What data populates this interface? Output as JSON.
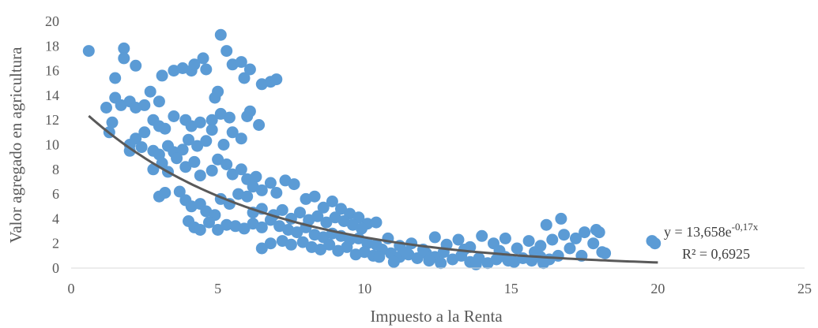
{
  "chart_data": {
    "type": "scatter",
    "xlabel": "Impuesto a la Renta",
    "ylabel": "Valor agregado en agricultura",
    "xlim": [
      0,
      25
    ],
    "ylim": [
      0,
      20
    ],
    "xticks": [
      "0",
      "5",
      "10",
      "15",
      "20",
      "25"
    ],
    "yticks": [
      "0",
      "2",
      "4",
      "6",
      "8",
      "10",
      "12",
      "14",
      "16",
      "18",
      "20"
    ],
    "grid": false,
    "colors": {
      "points": "#5b9bd5",
      "trendline": "#595959"
    },
    "trendline": {
      "type": "exponential",
      "a": 13.658,
      "b": -0.17,
      "x_range": [
        0.6,
        20
      ],
      "equation_prefix": "y = 13,658e",
      "equation_exponent": "-0,17x",
      "r2_label": "R² = 0,6925"
    },
    "points": [
      [
        0.6,
        17.6
      ],
      [
        1.5,
        15.4
      ],
      [
        1.8,
        17.8
      ],
      [
        1.8,
        17.0
      ],
      [
        2.2,
        16.4
      ],
      [
        1.2,
        13.0
      ],
      [
        1.5,
        13.8
      ],
      [
        1.7,
        13.2
      ],
      [
        2.0,
        13.5
      ],
      [
        2.2,
        13.0
      ],
      [
        2.5,
        13.2
      ],
      [
        2.7,
        14.3
      ],
      [
        3.0,
        13.5
      ],
      [
        3.1,
        15.6
      ],
      [
        3.5,
        16.0
      ],
      [
        3.8,
        16.2
      ],
      [
        4.1,
        16.0
      ],
      [
        4.2,
        16.5
      ],
      [
        4.5,
        17.0
      ],
      [
        4.6,
        16.1
      ],
      [
        4.9,
        13.8
      ],
      [
        5.0,
        14.3
      ],
      [
        5.1,
        18.9
      ],
      [
        5.3,
        17.6
      ],
      [
        5.5,
        16.5
      ],
      [
        5.8,
        16.7
      ],
      [
        5.9,
        15.4
      ],
      [
        6.1,
        16.1
      ],
      [
        6.5,
        14.9
      ],
      [
        6.8,
        15.1
      ],
      [
        7.0,
        15.3
      ],
      [
        4.8,
        12.0
      ],
      [
        5.1,
        12.5
      ],
      [
        5.4,
        12.2
      ],
      [
        6.0,
        12.3
      ],
      [
        6.1,
        12.7
      ],
      [
        6.4,
        11.6
      ],
      [
        1.3,
        11.0
      ],
      [
        1.4,
        11.8
      ],
      [
        2.0,
        10.0
      ],
      [
        2.2,
        10.5
      ],
      [
        2.5,
        11.0
      ],
      [
        2.8,
        12.0
      ],
      [
        3.0,
        11.5
      ],
      [
        3.2,
        11.3
      ],
      [
        3.5,
        12.3
      ],
      [
        3.9,
        12.0
      ],
      [
        4.1,
        11.5
      ],
      [
        4.4,
        11.8
      ],
      [
        4.8,
        11.2
      ],
      [
        2.0,
        9.5
      ],
      [
        2.4,
        9.8
      ],
      [
        2.8,
        9.5
      ],
      [
        3.0,
        9.2
      ],
      [
        3.3,
        9.9
      ],
      [
        3.5,
        9.4
      ],
      [
        3.8,
        9.6
      ],
      [
        4.0,
        10.4
      ],
      [
        4.3,
        9.9
      ],
      [
        4.6,
        10.3
      ],
      [
        5.2,
        10.0
      ],
      [
        5.5,
        11.0
      ],
      [
        5.8,
        10.5
      ],
      [
        2.8,
        8.0
      ],
      [
        3.1,
        8.5
      ],
      [
        3.3,
        7.8
      ],
      [
        3.6,
        8.9
      ],
      [
        3.9,
        8.2
      ],
      [
        4.2,
        8.6
      ],
      [
        4.4,
        7.5
      ],
      [
        4.8,
        7.9
      ],
      [
        5.0,
        8.8
      ],
      [
        5.3,
        8.4
      ],
      [
        5.5,
        7.6
      ],
      [
        5.8,
        8.0
      ],
      [
        6.0,
        7.2
      ],
      [
        6.3,
        7.4
      ],
      [
        3.0,
        5.8
      ],
      [
        3.2,
        6.1
      ],
      [
        3.7,
        6.2
      ],
      [
        3.9,
        5.5
      ],
      [
        4.1,
        5.0
      ],
      [
        4.4,
        5.2
      ],
      [
        4.6,
        4.6
      ],
      [
        4.9,
        4.3
      ],
      [
        5.1,
        5.6
      ],
      [
        5.4,
        5.2
      ],
      [
        5.7,
        6.0
      ],
      [
        6.0,
        5.8
      ],
      [
        6.2,
        6.6
      ],
      [
        6.5,
        6.3
      ],
      [
        6.8,
        6.9
      ],
      [
        7.0,
        6.1
      ],
      [
        7.3,
        7.1
      ],
      [
        7.6,
        6.8
      ],
      [
        8.0,
        5.6
      ],
      [
        8.3,
        5.8
      ],
      [
        8.6,
        4.9
      ],
      [
        8.9,
        5.4
      ],
      [
        9.2,
        4.8
      ],
      [
        9.5,
        4.4
      ],
      [
        9.8,
        4.1
      ],
      [
        10.1,
        3.6
      ],
      [
        10.4,
        3.7
      ],
      [
        4.0,
        3.8
      ],
      [
        4.2,
        3.3
      ],
      [
        4.4,
        3.1
      ],
      [
        4.7,
        3.7
      ],
      [
        5.0,
        3.1
      ],
      [
        5.3,
        3.5
      ],
      [
        5.6,
        3.4
      ],
      [
        5.9,
        3.2
      ],
      [
        6.2,
        3.6
      ],
      [
        6.5,
        3.3
      ],
      [
        6.8,
        3.9
      ],
      [
        7.1,
        3.4
      ],
      [
        7.4,
        3.1
      ],
      [
        7.7,
        2.9
      ],
      [
        8.0,
        3.3
      ],
      [
        8.3,
        2.7
      ],
      [
        8.6,
        2.5
      ],
      [
        8.9,
        2.8
      ],
      [
        9.2,
        2.6
      ],
      [
        9.5,
        2.3
      ],
      [
        9.8,
        2.4
      ],
      [
        10.1,
        2.0
      ],
      [
        10.4,
        1.9
      ],
      [
        6.2,
        4.5
      ],
      [
        6.5,
        4.8
      ],
      [
        6.9,
        4.3
      ],
      [
        7.2,
        4.7
      ],
      [
        7.5,
        4.0
      ],
      [
        7.8,
        4.5
      ],
      [
        8.1,
        3.9
      ],
      [
        8.4,
        4.2
      ],
      [
        8.7,
        3.7
      ],
      [
        9.0,
        4.1
      ],
      [
        9.3,
        3.8
      ],
      [
        9.6,
        3.5
      ],
      [
        9.9,
        3.2
      ],
      [
        6.5,
        1.6
      ],
      [
        6.8,
        2.0
      ],
      [
        7.2,
        2.2
      ],
      [
        7.5,
        1.9
      ],
      [
        7.9,
        2.1
      ],
      [
        8.2,
        1.7
      ],
      [
        8.5,
        1.5
      ],
      [
        8.8,
        1.9
      ],
      [
        9.1,
        1.4
      ],
      [
        9.4,
        1.7
      ],
      [
        9.7,
        1.1
      ],
      [
        10.0,
        1.3
      ],
      [
        10.3,
        1.0
      ],
      [
        10.6,
        1.5
      ],
      [
        10.9,
        1.2
      ],
      [
        11.2,
        0.9
      ],
      [
        11.5,
        1.1
      ],
      [
        11.8,
        0.8
      ],
      [
        12.1,
        1.2
      ],
      [
        12.4,
        0.9
      ],
      [
        12.7,
        1.3
      ],
      [
        13.0,
        0.7
      ],
      [
        13.3,
        1.0
      ],
      [
        13.6,
        0.5
      ],
      [
        13.9,
        0.8
      ],
      [
        14.2,
        0.4
      ],
      [
        14.5,
        0.7
      ],
      [
        14.8,
        0.9
      ],
      [
        15.1,
        0.5
      ],
      [
        15.4,
        0.8
      ],
      [
        15.7,
        0.6
      ],
      [
        16.0,
        0.9
      ],
      [
        16.3,
        0.7
      ],
      [
        16.6,
        1.0
      ],
      [
        10.8,
        2.4
      ],
      [
        11.2,
        1.8
      ],
      [
        11.6,
        2.0
      ],
      [
        12.0,
        1.5
      ],
      [
        12.4,
        2.5
      ],
      [
        12.8,
        1.9
      ],
      [
        13.2,
        2.3
      ],
      [
        13.6,
        1.7
      ],
      [
        14.0,
        2.6
      ],
      [
        14.4,
        2.0
      ],
      [
        14.8,
        2.4
      ],
      [
        15.2,
        1.6
      ],
      [
        15.6,
        2.2
      ],
      [
        16.0,
        1.8
      ],
      [
        16.4,
        2.3
      ],
      [
        16.8,
        2.7
      ],
      [
        17.2,
        2.4
      ],
      [
        17.5,
        2.9
      ],
      [
        17.8,
        2.0
      ],
      [
        18.0,
        2.9
      ],
      [
        16.2,
        3.5
      ],
      [
        16.7,
        4.0
      ],
      [
        17.9,
        3.1
      ],
      [
        18.1,
        1.3
      ],
      [
        18.2,
        1.2
      ],
      [
        19.8,
        2.2
      ],
      [
        19.9,
        2.0
      ],
      [
        11.4,
        1.3
      ],
      [
        12.2,
        0.6
      ],
      [
        13.4,
        1.5
      ],
      [
        14.6,
        1.4
      ],
      [
        15.8,
        1.3
      ],
      [
        17.0,
        1.6
      ],
      [
        17.4,
        1.0
      ],
      [
        10.5,
        0.9
      ],
      [
        11.0,
        0.5
      ],
      [
        12.6,
        0.4
      ],
      [
        13.8,
        0.3
      ],
      [
        14.9,
        0.6
      ],
      [
        16.1,
        0.4
      ]
    ]
  }
}
